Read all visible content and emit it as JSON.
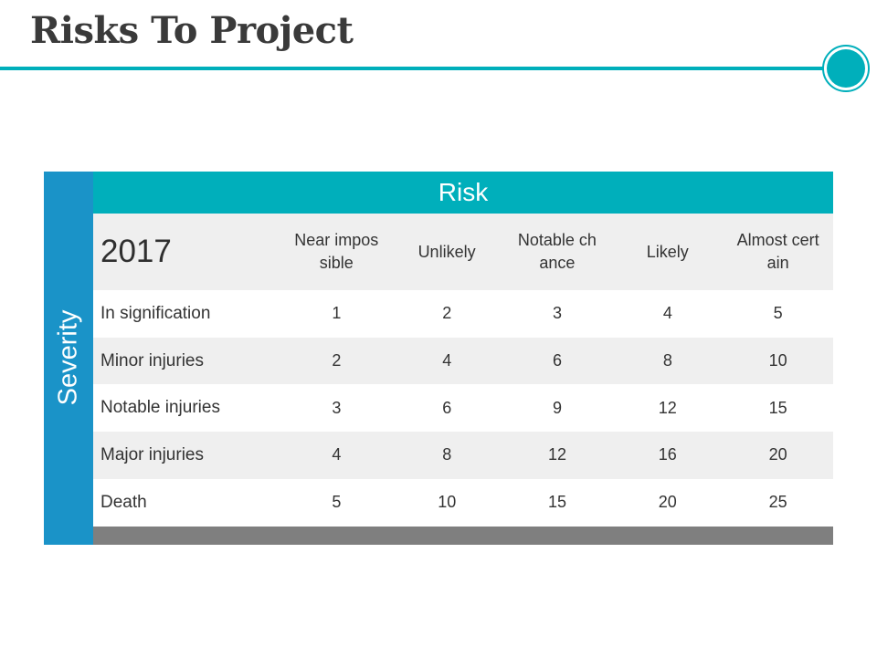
{
  "title": "Risks To Project",
  "colors": {
    "accent": "#00afbb",
    "severity_bar": "#1a93c8",
    "footer_bar": "#7f7f7f",
    "row_shade": "#efefef"
  },
  "table": {
    "risk_header": "Risk",
    "severity_label": "Severity",
    "year": "2017",
    "columns": [
      "Near impossible",
      "Unlikely",
      "Notable chance",
      "Likely",
      "Almost certain"
    ],
    "rows": [
      {
        "label": "In signification",
        "values": [
          "1",
          "2",
          "3",
          "4",
          "5"
        ]
      },
      {
        "label": "Minor injuries",
        "values": [
          "2",
          "4",
          "6",
          "8",
          "10"
        ]
      },
      {
        "label": "Notable injuries",
        "values": [
          "3",
          "6",
          "9",
          "12",
          "15"
        ]
      },
      {
        "label": "Major injuries",
        "values": [
          "4",
          "8",
          "12",
          "16",
          "20"
        ]
      },
      {
        "label": "Death",
        "values": [
          "5",
          "10",
          "15",
          "20",
          "25"
        ]
      }
    ]
  }
}
